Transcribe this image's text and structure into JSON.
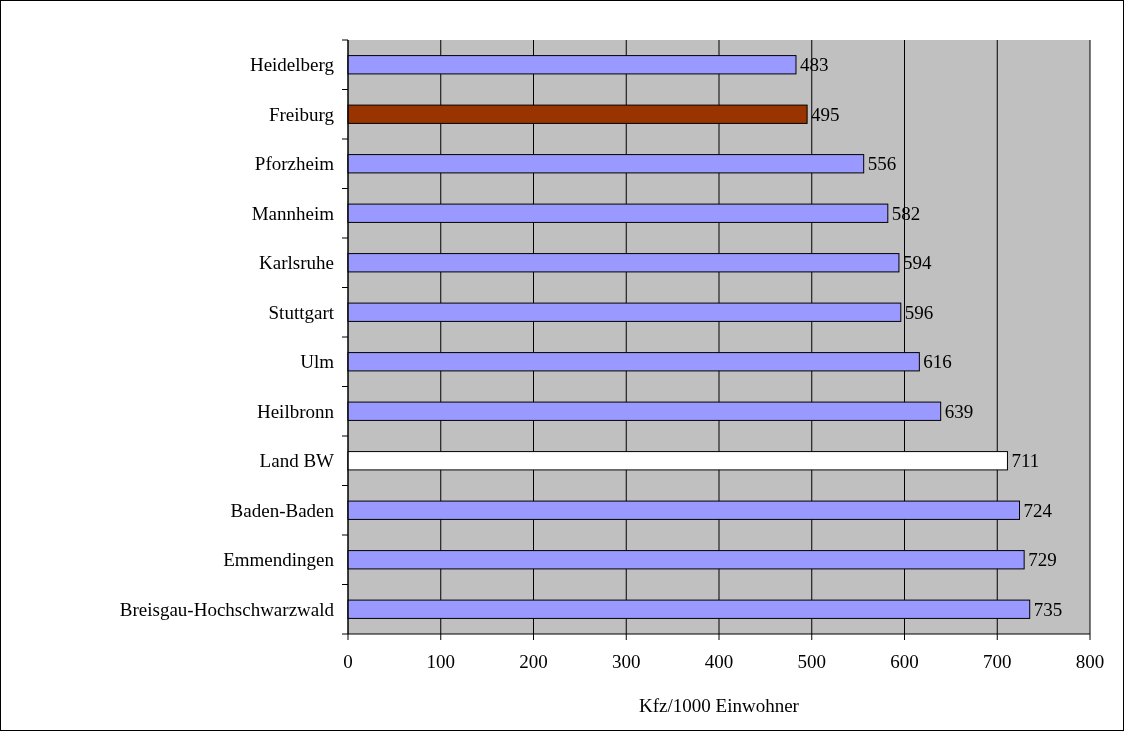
{
  "chart_data": {
    "type": "bar",
    "orientation": "horizontal",
    "xlabel": "Kfz/1000 Einwohner",
    "categories": [
      "Heidelberg",
      "Freiburg",
      "Pforzheim",
      "Mannheim",
      "Karlsruhe",
      "Stuttgart",
      "Ulm",
      "Heilbronn",
      "Land BW",
      "Baden-Baden",
      "Emmendingen",
      "Breisgau-Hochschwarzwald"
    ],
    "values": [
      483,
      495,
      556,
      582,
      594,
      596,
      616,
      639,
      711,
      724,
      729,
      735
    ],
    "colors": [
      "#9999ff",
      "#993300",
      "#9999ff",
      "#9999ff",
      "#9999ff",
      "#9999ff",
      "#9999ff",
      "#9999ff",
      "#ffffff",
      "#9999ff",
      "#9999ff",
      "#9999ff"
    ],
    "xlim": [
      0,
      800
    ],
    "xticks": [
      0,
      100,
      200,
      300,
      400,
      500,
      600,
      700,
      800
    ],
    "grid": "x",
    "data_labels": true
  }
}
